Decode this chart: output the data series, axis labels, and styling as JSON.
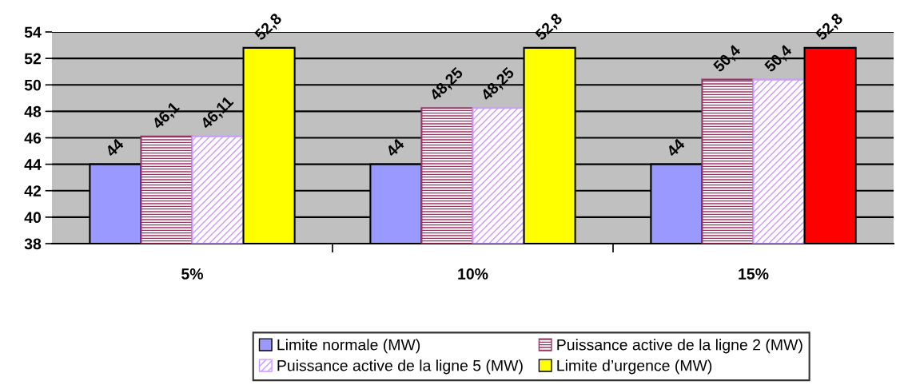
{
  "chart_data": {
    "type": "bar",
    "categories": [
      "5%",
      "10%",
      "15%"
    ],
    "series": [
      {
        "name": "Limite normale (MW)",
        "color": "#9999ff",
        "values": [
          44,
          44,
          44
        ],
        "value_labels": [
          "44",
          "44",
          "44"
        ]
      },
      {
        "name": "Puissance active de la ligne 2 (MW)",
        "color": "#993366",
        "values": [
          46.1,
          48.25,
          50.4
        ],
        "value_labels": [
          "46,1",
          "48,25",
          "50,4"
        ]
      },
      {
        "name": "Puissance active de la ligne 5 (MW)",
        "color": "#cc99ff",
        "values": [
          46.11,
          48.25,
          50.4
        ],
        "value_labels": [
          "46,11",
          "48,25",
          "50,4"
        ]
      },
      {
        "name": "Limite d’urgence (MW)",
        "color": "#ffff00",
        "colors": [
          "#ffff00",
          "#ffff00",
          "#ff0000"
        ],
        "values": [
          52.8,
          52.8,
          52.8
        ],
        "value_labels": [
          "52,8",
          "52,8",
          "52,8"
        ]
      }
    ],
    "ylim": [
      38,
      54
    ],
    "yticks": [
      38,
      40,
      42,
      44,
      46,
      48,
      50,
      52,
      54
    ],
    "grid": "y",
    "legend": "bottom"
  }
}
